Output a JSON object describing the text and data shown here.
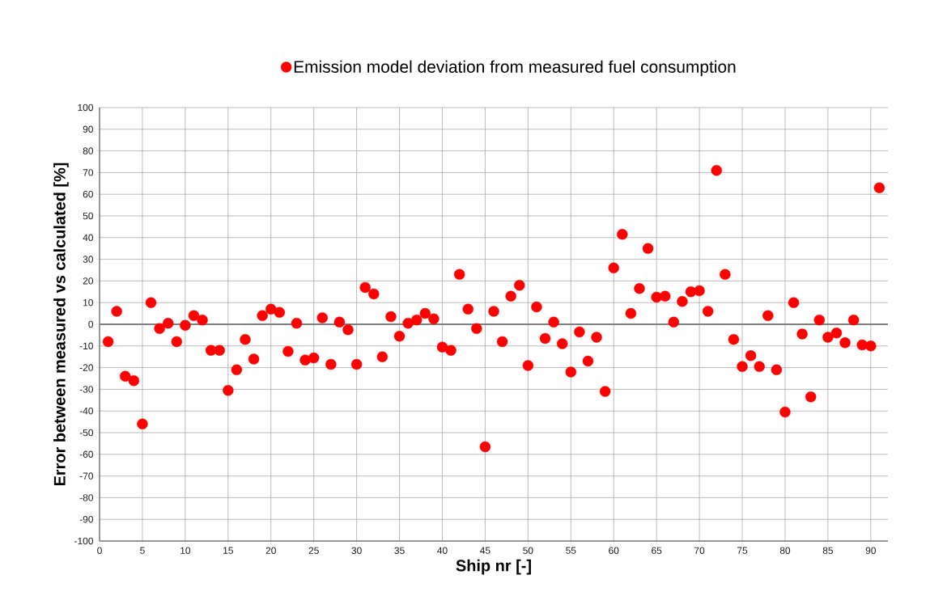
{
  "chart_data": {
    "type": "scatter",
    "xlabel": "Ship nr [-]",
    "ylabel": "Error between measured vs calculated [%]",
    "x": [
      1,
      2,
      3,
      4,
      5,
      6,
      7,
      8,
      9,
      10,
      11,
      12,
      13,
      14,
      15,
      16,
      17,
      18,
      19,
      20,
      21,
      22,
      23,
      24,
      25,
      26,
      27,
      28,
      29,
      30,
      31,
      32,
      33,
      34,
      35,
      36,
      37,
      38,
      39,
      40,
      41,
      42,
      43,
      44,
      45,
      46,
      47,
      48,
      49,
      50,
      51,
      52,
      53,
      54,
      55,
      56,
      57,
      58,
      59,
      60,
      61,
      62,
      63,
      64,
      65,
      66,
      67,
      68,
      69,
      70,
      71,
      72,
      73,
      74,
      75,
      76,
      77,
      78,
      79,
      80,
      81,
      82,
      83,
      84,
      85,
      86,
      87,
      88,
      89,
      90,
      91
    ],
    "series": [
      {
        "name": "Emission model deviation from measured fuel consumption",
        "color": "#ff0000",
        "values": [
          -8,
          6,
          -24,
          -26,
          -46,
          10,
          -2,
          0.5,
          -8,
          -0.5,
          4,
          2,
          -12,
          -12,
          -30.5,
          -21,
          -7,
          -16,
          4,
          7,
          5.5,
          -12.5,
          0.5,
          -16.5,
          -15.5,
          3,
          -18.5,
          1,
          -2.5,
          -18.5,
          17,
          14,
          -15,
          3.5,
          -5.5,
          0.5,
          2,
          5,
          2.5,
          -10.5,
          -12,
          23,
          7,
          -2,
          -56.5,
          6,
          -8,
          13,
          18,
          -19,
          8,
          -6.5,
          1,
          -9,
          -22,
          -3.5,
          -17,
          -6,
          -31,
          26,
          41.5,
          5,
          16.5,
          35,
          12.5,
          13,
          1,
          10.5,
          15,
          15.5,
          6,
          71,
          23,
          -7,
          -19.5,
          -14.5,
          -19.5,
          4,
          -21,
          -40.5,
          10,
          -4.5,
          -33.5,
          2,
          -6,
          -4,
          -8.5,
          2,
          -9.5,
          -10,
          63
        ]
      }
    ],
    "xlim": [
      0,
      92
    ],
    "xticks": [
      0,
      5,
      10,
      15,
      20,
      25,
      30,
      35,
      40,
      45,
      50,
      55,
      60,
      65,
      70,
      75,
      80,
      85,
      90
    ],
    "ylim": [
      -100,
      100
    ],
    "yticks": [
      -100,
      -90,
      -80,
      -70,
      -60,
      -50,
      -40,
      -30,
      -20,
      -10,
      0,
      10,
      20,
      30,
      40,
      50,
      60,
      70,
      80,
      90,
      100
    ],
    "ref_lines": [
      {
        "axis": "y",
        "value": 0,
        "color": "#808080"
      }
    ],
    "grid": true,
    "legend": "top",
    "marker": "circle"
  }
}
